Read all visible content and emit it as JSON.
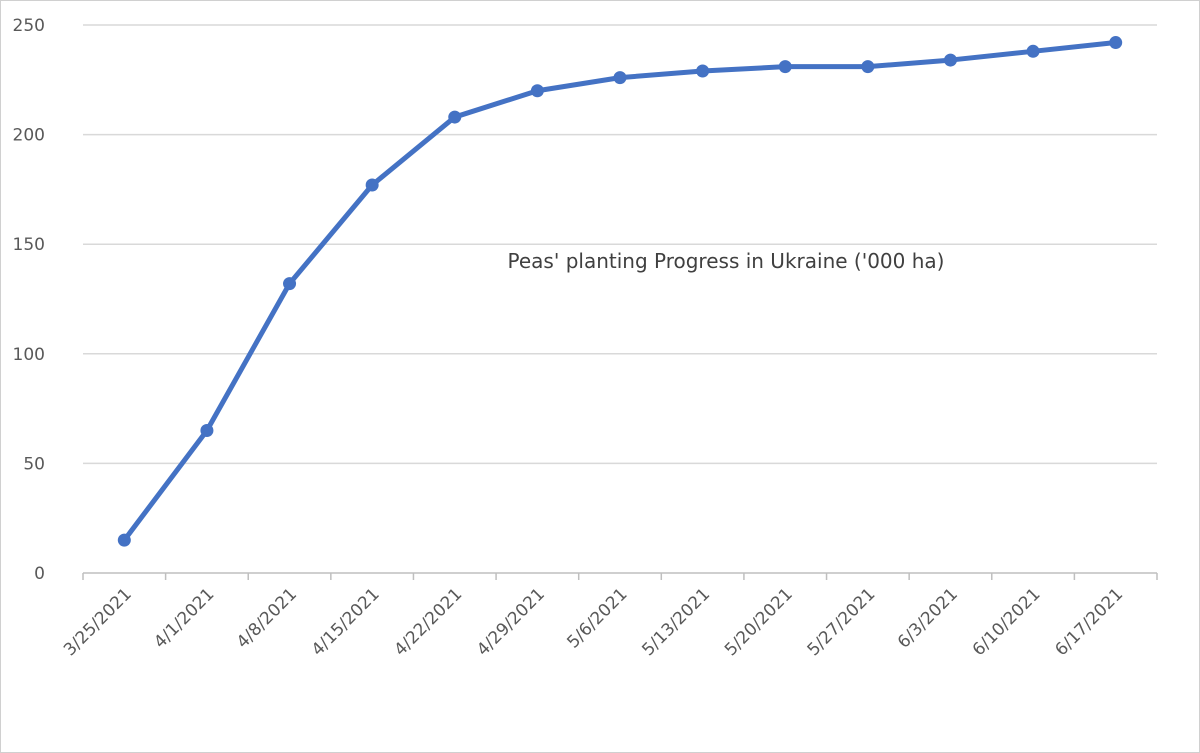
{
  "chart_data": {
    "type": "line",
    "title": "Peas' planting Progress in Ukraine ('000 ha)",
    "xlabel": "",
    "ylabel": "",
    "categories": [
      "3/25/2021",
      "4/1/2021",
      "4/8/2021",
      "4/15/2021",
      "4/22/2021",
      "4/29/2021",
      "5/6/2021",
      "5/13/2021",
      "5/20/2021",
      "5/27/2021",
      "6/3/2021",
      "6/10/2021",
      "6/17/2021"
    ],
    "series": [
      {
        "name": "",
        "values": [
          15,
          65,
          132,
          177,
          208,
          220,
          226,
          229,
          231,
          231,
          234,
          238,
          242
        ]
      }
    ],
    "ylim": [
      0,
      250
    ],
    "yticks": [
      0,
      50,
      100,
      150,
      200,
      250
    ],
    "grid": true,
    "legend": "none",
    "colors": {
      "line": "#4472c4",
      "grid": "#d9d9d9",
      "axis": "#bfbfbf"
    }
  }
}
